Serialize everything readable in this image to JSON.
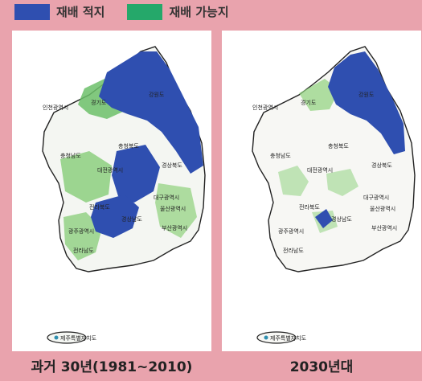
{
  "legend": [
    {
      "label": "재배 적지",
      "color": "#2f4fb0"
    },
    {
      "label": "재배 가능지",
      "color": "#25a86a"
    }
  ],
  "panels": [
    {
      "caption": "과거 30년(1981~2010)",
      "labels": [
        "인천광역시",
        "경기도",
        "강원도",
        "충청북도",
        "충청남도",
        "대전광역시",
        "경상북도",
        "대구광역시",
        "전라북도",
        "울산광역시",
        "경상남도",
        "광주광역시",
        "부산광역시",
        "전라남도",
        "제주특별자치도"
      ]
    },
    {
      "caption": "2030년대",
      "labels": [
        "인천광역시",
        "경기도",
        "강원도",
        "충청북도",
        "충청남도",
        "대전광역시",
        "경상북도",
        "대구광역시",
        "전라북도",
        "울산광역시",
        "경상남도",
        "광주광역시",
        "부산광역시",
        "전라남도",
        "제주특별자치도"
      ]
    }
  ]
}
